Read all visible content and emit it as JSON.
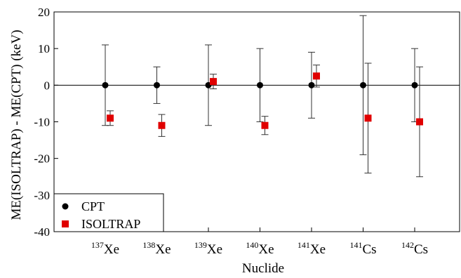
{
  "chart_data": {
    "type": "scatter",
    "xlabel": "Nuclide",
    "ylabel": "ME(ISOLTRAP) - ME(CPT) (keV)",
    "ylim": [
      -40,
      20
    ],
    "yticks": [
      -40,
      -30,
      -20,
      -10,
      0,
      10,
      20
    ],
    "zero_line": true,
    "grid": false,
    "legend_position": "bottom-left",
    "categories": [
      {
        "mass": "137",
        "element": "Xe"
      },
      {
        "mass": "138",
        "element": "Xe"
      },
      {
        "mass": "139",
        "element": "Xe"
      },
      {
        "mass": "140",
        "element": "Xe"
      },
      {
        "mass": "141",
        "element": "Xe"
      },
      {
        "mass": "141",
        "element": "Cs"
      },
      {
        "mass": "142",
        "element": "Cs"
      }
    ],
    "series": [
      {
        "name": "CPT",
        "marker": "circle",
        "color": "#000000",
        "values": [
          0,
          0,
          0,
          0,
          0,
          0,
          0
        ],
        "errors": [
          11,
          5,
          11,
          10,
          9,
          19,
          10
        ]
      },
      {
        "name": "ISOLTRAP",
        "marker": "square",
        "color": "#e00000",
        "values": [
          -9,
          -11,
          1,
          -11,
          2.5,
          -9,
          -10
        ],
        "errors": [
          2,
          3,
          2,
          2.5,
          3,
          15,
          15
        ]
      }
    ]
  }
}
